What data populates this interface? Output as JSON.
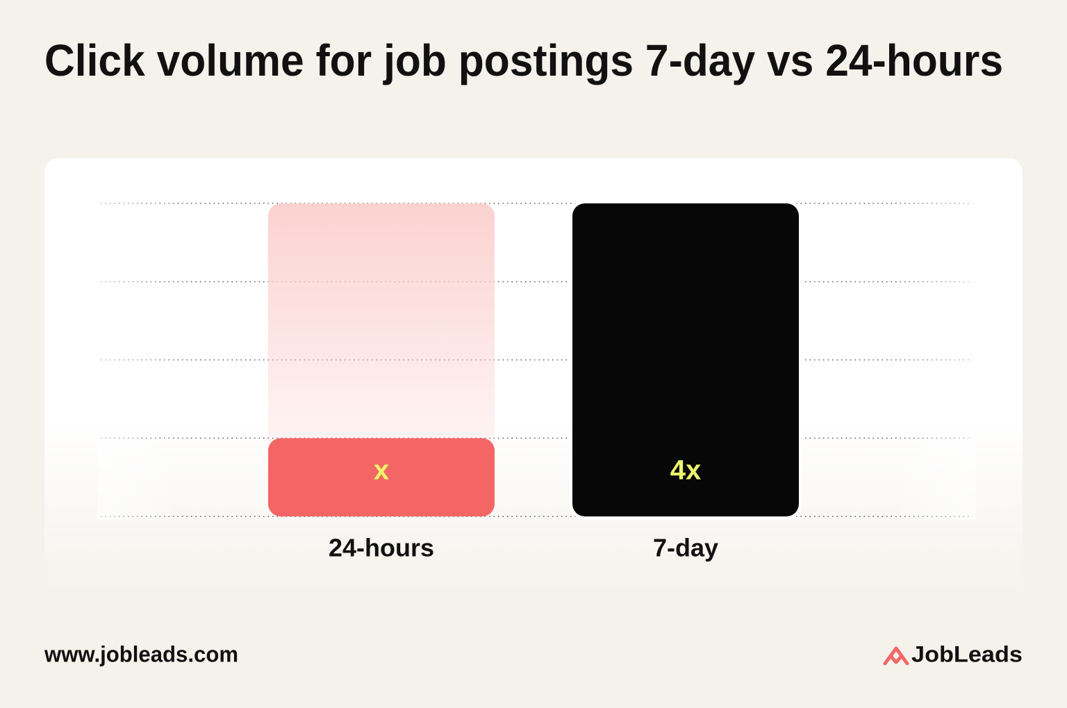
{
  "chart_data": {
    "type": "bar",
    "title": "Click volume for job postings 7-day vs 24-hours",
    "categories": [
      "24-hours",
      "7-day"
    ],
    "values": [
      1,
      4
    ],
    "value_labels": [
      "x",
      "4x"
    ],
    "colors": [
      "#f46666",
      "#070707"
    ],
    "ylim": [
      0,
      4
    ],
    "yticks": [
      0,
      1,
      2,
      3,
      4
    ],
    "grid": true
  },
  "footer": {
    "url": "www.jobleads.com",
    "brand": "JobLeads"
  }
}
